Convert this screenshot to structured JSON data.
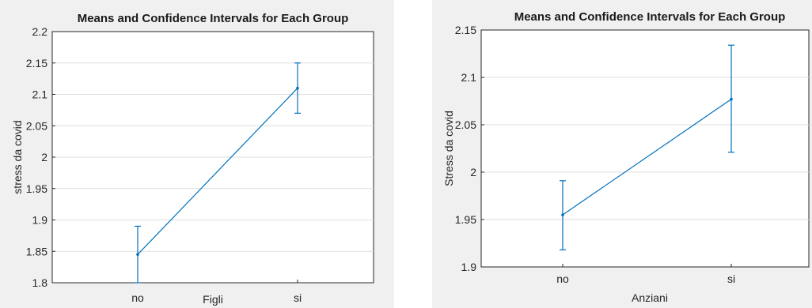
{
  "chart_data": [
    {
      "type": "line",
      "title": "Means and Confidence Intervals for Each Group",
      "xlabel": "Figli",
      "ylabel": "stress da covid",
      "categories": [
        "no",
        "si"
      ],
      "series": [
        {
          "values": [
            1.845,
            2.11
          ],
          "ci_lower": [
            1.8,
            2.07
          ],
          "ci_upper": [
            1.89,
            2.15
          ],
          "color": "#0072bd"
        }
      ],
      "ylim": [
        1.8,
        2.2
      ],
      "yticks": [
        1.8,
        1.85,
        1.9,
        1.95,
        2,
        2.05,
        2.1,
        2.15,
        2.2
      ],
      "ytick_labels": [
        "1.8",
        "1.85",
        "1.9",
        "1.95",
        "2",
        "2.05",
        "2.1",
        "2.15",
        "2.2"
      ],
      "grid": "horizontal",
      "legend": "none"
    },
    {
      "type": "line",
      "title": "Means and Confidence Intervals for Each Group",
      "xlabel": "Anziani",
      "ylabel": "Stress da covid",
      "categories": [
        "no",
        "si"
      ],
      "series": [
        {
          "values": [
            1.955,
            2.077
          ],
          "ci_lower": [
            1.918,
            2.021
          ],
          "ci_upper": [
            1.991,
            2.134
          ],
          "color": "#0072bd"
        }
      ],
      "ylim": [
        1.9,
        2.15
      ],
      "yticks": [
        1.9,
        1.95,
        2,
        2.05,
        2.1,
        2.15
      ],
      "ytick_labels": [
        "1.9",
        "1.95",
        "2",
        "2.05",
        "2.1",
        "2.15"
      ],
      "grid": "horizontal",
      "legend": "none"
    }
  ]
}
